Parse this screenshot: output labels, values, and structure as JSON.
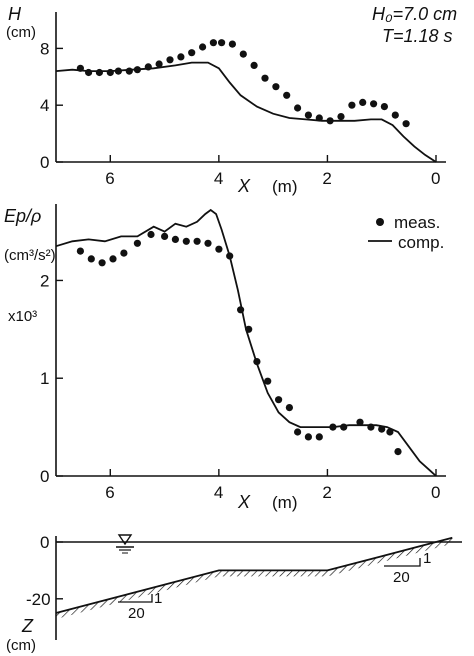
{
  "chart_data": [
    {
      "type": "line",
      "panel": "wave-height",
      "ylabel": "H",
      "yunit": "(cm)",
      "xlabel": "X",
      "xunit": "(m)",
      "xlim": [
        7.0,
        0.0
      ],
      "ylim": [
        0,
        10
      ],
      "x_ticks": [
        6,
        4,
        2,
        0
      ],
      "y_ticks": [
        0,
        4,
        8
      ],
      "annotations": [
        "H₀=7.0 cm",
        "T=1.18 s"
      ],
      "series": [
        {
          "name": "meas.",
          "style": "points",
          "x": [
            6.55,
            6.4,
            6.2,
            6.0,
            5.85,
            5.65,
            5.5,
            5.3,
            5.1,
            4.9,
            4.7,
            4.5,
            4.3,
            4.1,
            3.95,
            3.75,
            3.55,
            3.35,
            3.15,
            2.95,
            2.75,
            2.55,
            2.35,
            2.15,
            1.95,
            1.75,
            1.55,
            1.35,
            1.15,
            0.95,
            0.75,
            0.55
          ],
          "y": [
            6.6,
            6.3,
            6.3,
            6.3,
            6.4,
            6.4,
            6.5,
            6.7,
            6.9,
            7.2,
            7.4,
            7.7,
            8.1,
            8.4,
            8.4,
            8.3,
            7.6,
            6.8,
            5.9,
            5.3,
            4.7,
            3.8,
            3.3,
            3.1,
            2.9,
            3.2,
            4.0,
            4.2,
            4.1,
            3.9,
            3.3,
            2.7
          ]
        },
        {
          "name": "comp.",
          "style": "line",
          "x": [
            7.0,
            6.7,
            6.4,
            6.0,
            5.6,
            5.2,
            4.8,
            4.5,
            4.2,
            4.0,
            3.8,
            3.6,
            3.3,
            3.0,
            2.7,
            2.4,
            2.1,
            1.8,
            1.5,
            1.2,
            1.0,
            0.8,
            0.6,
            0.4,
            0.2,
            0.0
          ],
          "y": [
            6.4,
            6.5,
            6.4,
            6.4,
            6.5,
            6.6,
            6.8,
            7.0,
            7.0,
            6.6,
            5.6,
            4.7,
            3.9,
            3.4,
            3.1,
            3.0,
            2.9,
            2.9,
            2.9,
            3.0,
            3.0,
            2.6,
            1.8,
            1.1,
            0.5,
            0.0
          ]
        }
      ]
    },
    {
      "type": "line",
      "panel": "energy-flux",
      "ylabel": "Ep/ρ",
      "yunit": "(cm³/s²)",
      "yscale_note": "x10³",
      "xlabel": "X",
      "xunit": "(m)",
      "xlim": [
        7.0,
        0.0
      ],
      "ylim": [
        0,
        2.7
      ],
      "x_ticks": [
        6,
        4,
        2,
        0
      ],
      "y_ticks": [
        0,
        1,
        2
      ],
      "legend": [
        "meas.",
        "comp."
      ],
      "legend_position": "top-right",
      "series": [
        {
          "name": "meas.",
          "style": "points",
          "x": [
            6.55,
            6.35,
            6.15,
            5.95,
            5.75,
            5.5,
            5.25,
            5.0,
            4.8,
            4.6,
            4.4,
            4.2,
            4.0,
            3.8,
            3.6,
            3.45,
            3.3,
            3.1,
            2.9,
            2.7,
            2.55,
            2.35,
            2.15,
            1.9,
            1.7,
            1.4,
            1.2,
            1.0,
            0.85,
            0.7
          ],
          "y": [
            2.3,
            2.22,
            2.18,
            2.22,
            2.28,
            2.38,
            2.47,
            2.45,
            2.42,
            2.4,
            2.4,
            2.38,
            2.32,
            2.25,
            1.7,
            1.5,
            1.17,
            0.97,
            0.78,
            0.7,
            0.45,
            0.4,
            0.4,
            0.5,
            0.5,
            0.55,
            0.5,
            0.48,
            0.45,
            0.25
          ]
        },
        {
          "name": "comp.",
          "style": "line",
          "x": [
            7.0,
            6.7,
            6.4,
            6.1,
            5.8,
            5.5,
            5.2,
            5.0,
            4.8,
            4.6,
            4.4,
            4.25,
            4.15,
            4.05,
            3.95,
            3.8,
            3.65,
            3.5,
            3.3,
            3.1,
            2.9,
            2.7,
            2.5,
            2.2,
            1.9,
            1.6,
            1.3,
            1.1,
            0.9,
            0.7,
            0.5,
            0.3,
            0.1,
            0.0
          ],
          "y": [
            2.35,
            2.4,
            2.42,
            2.4,
            2.45,
            2.45,
            2.55,
            2.5,
            2.58,
            2.55,
            2.6,
            2.68,
            2.72,
            2.68,
            2.52,
            2.25,
            1.9,
            1.5,
            1.15,
            0.85,
            0.65,
            0.55,
            0.5,
            0.5,
            0.5,
            0.52,
            0.52,
            0.52,
            0.5,
            0.45,
            0.3,
            0.15,
            0.05,
            0.0
          ]
        }
      ]
    },
    {
      "type": "line",
      "panel": "bottom-profile",
      "ylabel": "Z",
      "yunit": "(cm)",
      "xlim": [
        7.0,
        0.0
      ],
      "ylim": [
        -33,
        3
      ],
      "y_ticks": [
        0,
        -20
      ],
      "slope_labels": [
        "20",
        "1",
        "20",
        "1"
      ],
      "series": [
        {
          "name": "",
          "style": "line",
          "x": [
            7.0,
            4.0,
            2.0,
            0.3,
            -0.3
          ],
          "y": [
            -25.0,
            -10.0,
            -10.0,
            -1.5,
            1.5
          ]
        }
      ]
    }
  ]
}
